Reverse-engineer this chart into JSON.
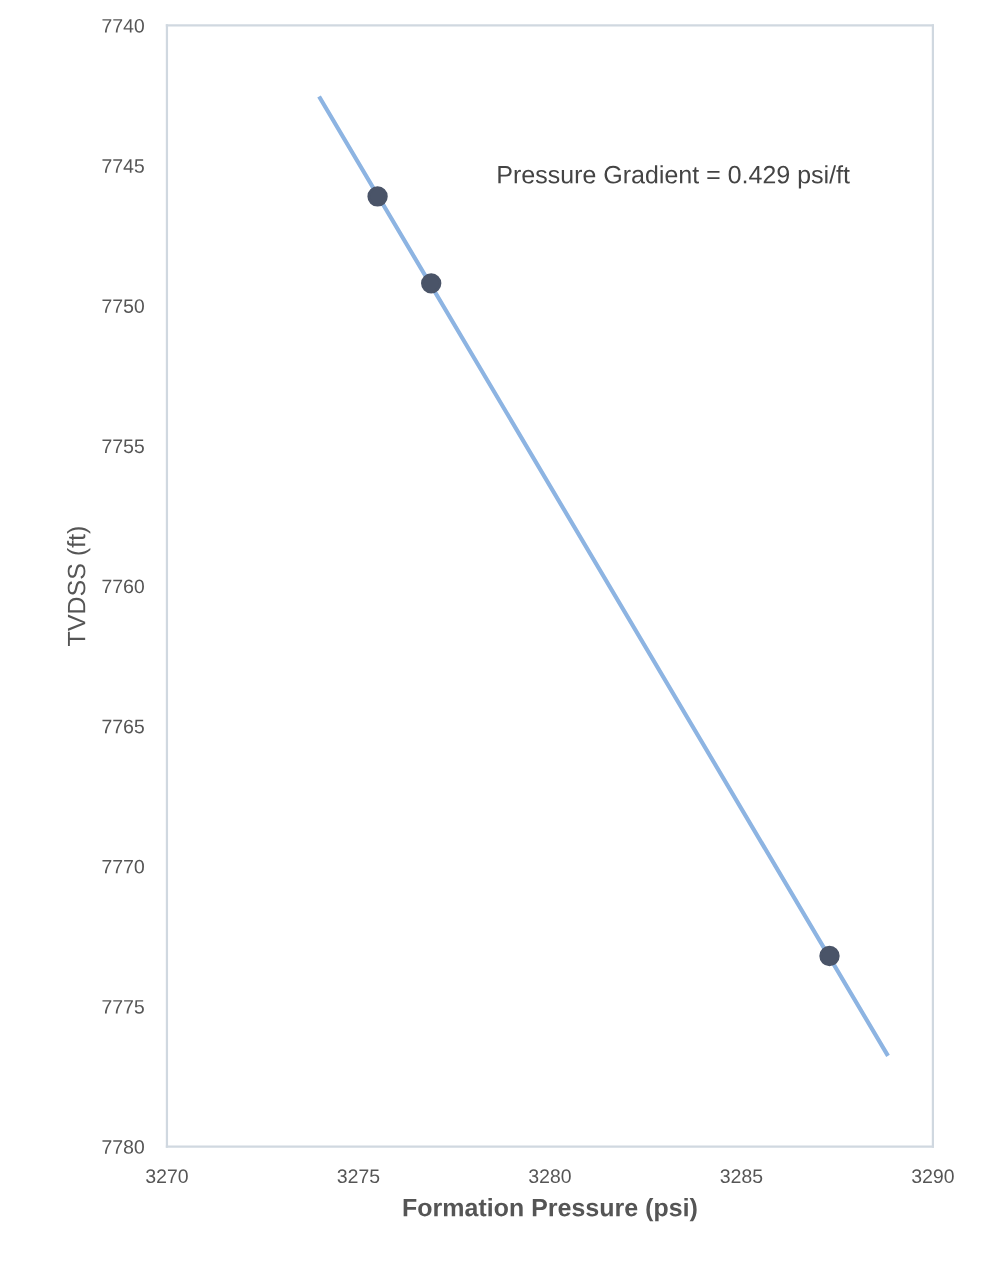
{
  "chart_data": {
    "type": "scatter",
    "xlabel": "Formation Pressure (psi)",
    "ylabel": "TVDSS (ft)",
    "x": [
      3275.5,
      3276.9,
      3287.3
    ],
    "series": [
      {
        "color": "#4a5468",
        "values": [
          7746.1,
          7749.2,
          7773.2
        ],
        "marker": "circle"
      },
      {
        "type": "line",
        "color": "#8db4e2",
        "x": [
          3274.0,
          3288.8
        ],
        "values": [
          7742.6,
          7776.7
        ],
        "line_style": "solid"
      }
    ],
    "annotations": [
      "Pressure Gradient = 0.429 psi/ft"
    ],
    "xlim": [
      3270,
      3290
    ],
    "xticks": [
      3270,
      3275,
      3280,
      3285,
      3290
    ],
    "ylim": [
      7780,
      7740
    ],
    "yticks": [
      7740,
      7745,
      7750,
      7755,
      7760,
      7765,
      7770,
      7775,
      7780
    ],
    "grid": false,
    "legend": false
  }
}
